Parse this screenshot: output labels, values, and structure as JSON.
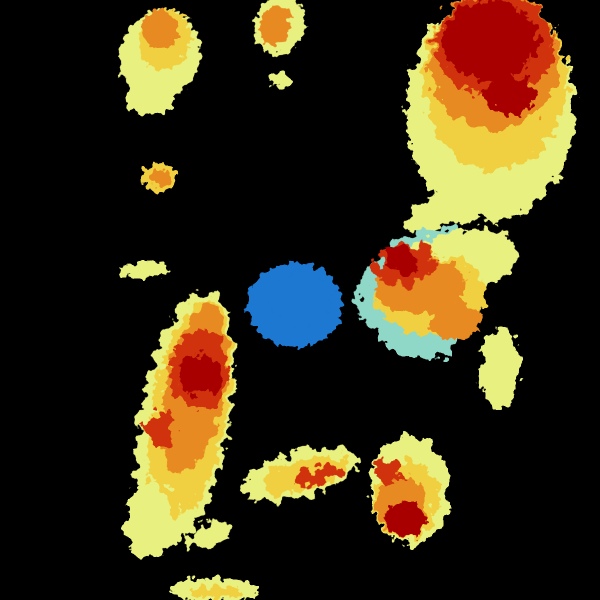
{
  "radar": {
    "background": "#000000",
    "palette": {
      "light": "#e8f080",
      "cyan": "#8fd8c8",
      "yellow": "#f0d040",
      "orange": "#e88a20",
      "red": "#d03010",
      "dark_red": "#a80000",
      "clutter_blue": "#1a78d0"
    }
  }
}
